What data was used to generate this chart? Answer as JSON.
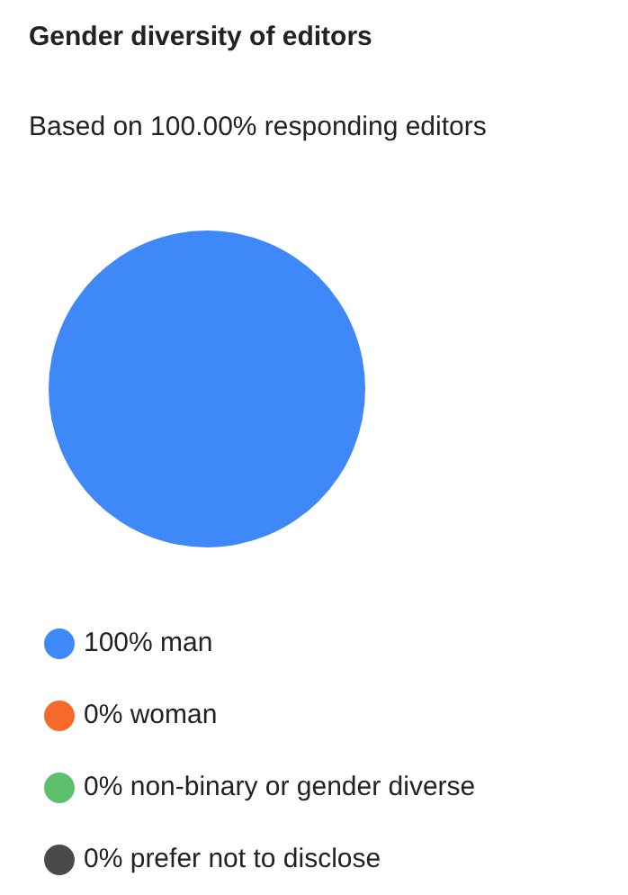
{
  "chart_data": {
    "type": "pie",
    "title": "Gender diversity of editors",
    "subtitle": "Based on 100.00% responding editors",
    "categories": [
      "man",
      "woman",
      "non-binary or gender diverse",
      "prefer not to disclose"
    ],
    "values": [
      100,
      0,
      0,
      0
    ],
    "colors": [
      "#3f88f8",
      "#f56a28",
      "#5cbf6b",
      "#4a4a4a"
    ],
    "value_labels": [
      "100%",
      "0%",
      "0%",
      "0%"
    ],
    "legend": "bottom"
  }
}
